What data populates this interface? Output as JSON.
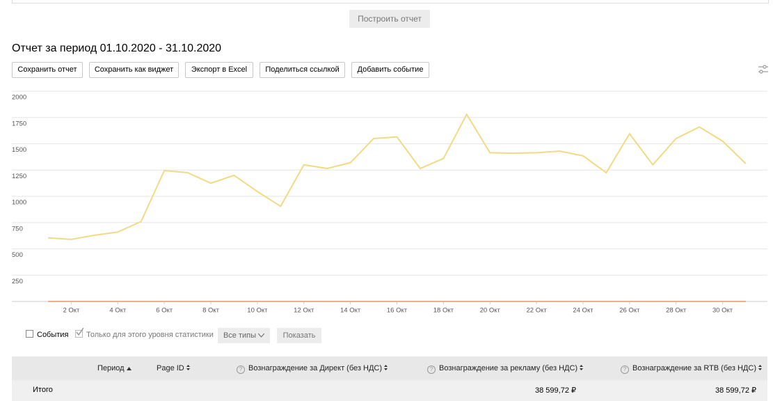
{
  "top_button": "Построить отчет",
  "report": {
    "title": "Отчет за период 01.10.2020 - 31.10.2020",
    "buttons": [
      "Сохранить отчет",
      "Сохранить как виджет",
      "Экспорт в Excel",
      "Поделиться ссылкой",
      "Добавить событие"
    ]
  },
  "chart_data": {
    "type": "line",
    "categories": [
      null,
      "2 Окт",
      null,
      "4 Окт",
      null,
      "6 Окт",
      null,
      "8 Окт",
      null,
      "10 Окт",
      null,
      "12 Окт",
      null,
      "14 Окт",
      null,
      "16 Окт",
      null,
      "18 Окт",
      null,
      "20 Окт",
      null,
      "22 Окт",
      null,
      "24 Окт",
      null,
      "26 Окт",
      null,
      "28 Окт",
      null,
      "30 Окт",
      null
    ],
    "series": [
      {
        "color": "#f2da84",
        "values": [
          605,
          590,
          630,
          660,
          760,
          1245,
          1225,
          1125,
          1200,
          1045,
          905,
          1300,
          1265,
          1320,
          1550,
          1565,
          1265,
          1360,
          1780,
          1415,
          1410,
          1415,
          1430,
          1385,
          1225,
          1595,
          1300,
          1550,
          1660,
          1525,
          1310
        ]
      },
      {
        "color": "#f0ad90",
        "values": [
          0,
          0,
          0,
          0,
          0,
          0,
          0,
          0,
          0,
          0,
          0,
          0,
          0,
          0,
          0,
          0,
          0,
          0,
          0,
          0,
          0,
          0,
          0,
          0,
          0,
          0,
          0,
          0,
          0,
          0,
          0
        ]
      }
    ],
    "ylim": [
      0,
      2000
    ],
    "yticks": [
      250,
      500,
      750,
      1000,
      1250,
      1500,
      1750,
      2000
    ],
    "grid": true
  },
  "controls": {
    "events": "События",
    "level_only": "Только для этого уровня статистики",
    "types": "Все типы",
    "show": "Показать"
  },
  "table": {
    "columns": [
      "Период",
      "Page ID",
      "Вознаграждение за Директ (без НДС)",
      "Вознаграждение за рекламу (без НДС)",
      "Вознаграждение за RTB (без НДС)"
    ],
    "total": {
      "label": "Итого",
      "ad": "38 599,72 ₽",
      "rtb": "38 599,72 ₽"
    }
  }
}
